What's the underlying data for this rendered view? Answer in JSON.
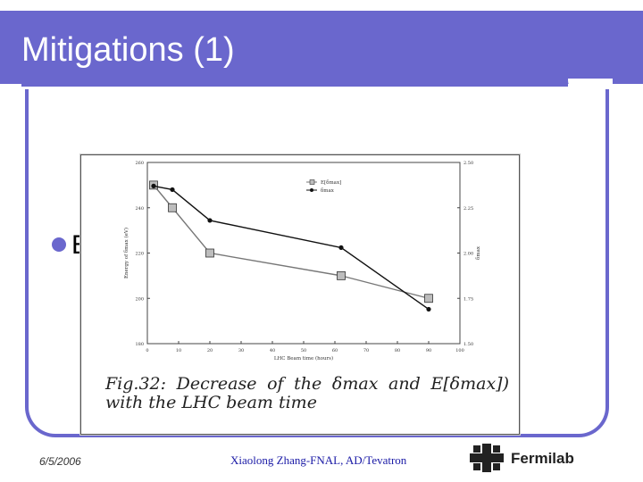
{
  "slide": {
    "title": "Mitigations (1)",
    "bullet_fragment": "E",
    "caption": "Fig.32: Decrease of the δmax and E[δmax]) with the LHC beam time"
  },
  "footer": {
    "date": "6/5/2006",
    "center": "Xiaolong Zhang-FNAL, AD/Tevatron",
    "logo_text": "Fermilab"
  },
  "colors": {
    "accent": "#6a67cd"
  },
  "chart_data": {
    "type": "line",
    "xlabel": "LHC Beam time (hours)",
    "ylabel": "Energy of δmax (eV)",
    "y2label": "δmax",
    "x_ticks": [
      "0",
      "10",
      "20",
      "30",
      "40",
      "50",
      "60",
      "70",
      "80",
      "90",
      "100"
    ],
    "y_ticks": [
      "180",
      "200",
      "220",
      "240",
      "260"
    ],
    "y2_ticks": [
      "1.50",
      "1.75",
      "2.00",
      "2.25",
      "2.50"
    ],
    "xlim": [
      0,
      100
    ],
    "ylim": [
      180,
      260
    ],
    "y2lim": [
      1.5,
      2.5
    ],
    "legend_position": "top-right",
    "series": [
      {
        "name": "E[δmax]",
        "axis": "left",
        "marker": "square",
        "color": "#777777",
        "x": [
          2,
          8,
          20,
          62,
          90
        ],
        "y": [
          250,
          240,
          220,
          210,
          200
        ]
      },
      {
        "name": "δmax",
        "axis": "right",
        "marker": "circle",
        "color": "#111111",
        "x": [
          2,
          8,
          20,
          62,
          90
        ],
        "y": [
          2.37,
          2.35,
          2.18,
          2.03,
          1.69
        ]
      }
    ]
  }
}
